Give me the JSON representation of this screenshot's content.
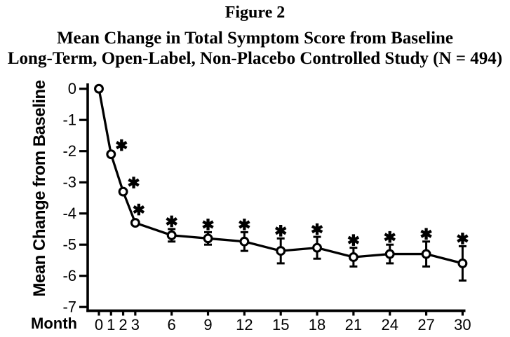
{
  "figure": {
    "label": "Figure 2",
    "title_line1": "Mean Change in Total Symptom Score from Baseline",
    "title_line2": "Long-Term, Open-Label, Non-Placebo Controlled Study (N = 494)"
  },
  "chart_data": {
    "type": "line",
    "title": "Figure 2",
    "subtitle": [
      "Mean Change in Total Symptom Score from Baseline",
      "Long-Term, Open-Label, Non-Placebo Controlled Study (N = 494)"
    ],
    "n_subjects": 494,
    "xlabel": "Month",
    "ylabel": "Mean Change from Baseline",
    "x": [
      0,
      1,
      2,
      3,
      6,
      9,
      12,
      15,
      18,
      21,
      24,
      27,
      30
    ],
    "y": [
      0,
      -2.1,
      -3.3,
      -4.3,
      -4.7,
      -4.8,
      -4.9,
      -5.2,
      -5.1,
      -5.4,
      -5.3,
      -5.3,
      -5.6
    ],
    "error": [
      0,
      0,
      0,
      0,
      0.2,
      0.2,
      0.3,
      0.4,
      0.35,
      0.3,
      0.3,
      0.4,
      0.55
    ],
    "significant_months": [
      1,
      2,
      3,
      6,
      9,
      12,
      15,
      18,
      21,
      24,
      27,
      30
    ],
    "significance_symbol": "*",
    "xticks": [
      0,
      1,
      2,
      3,
      6,
      9,
      12,
      15,
      18,
      21,
      24,
      27,
      30
    ],
    "yticks": [
      0,
      -1,
      -2,
      -3,
      -4,
      -5,
      -6,
      -7
    ],
    "xlim": [
      0,
      30
    ],
    "ylim": [
      -7,
      0
    ],
    "grid": false,
    "legend": null,
    "marker": "open-circle",
    "line_color": "#000000",
    "bg_color": "#ffffff"
  }
}
